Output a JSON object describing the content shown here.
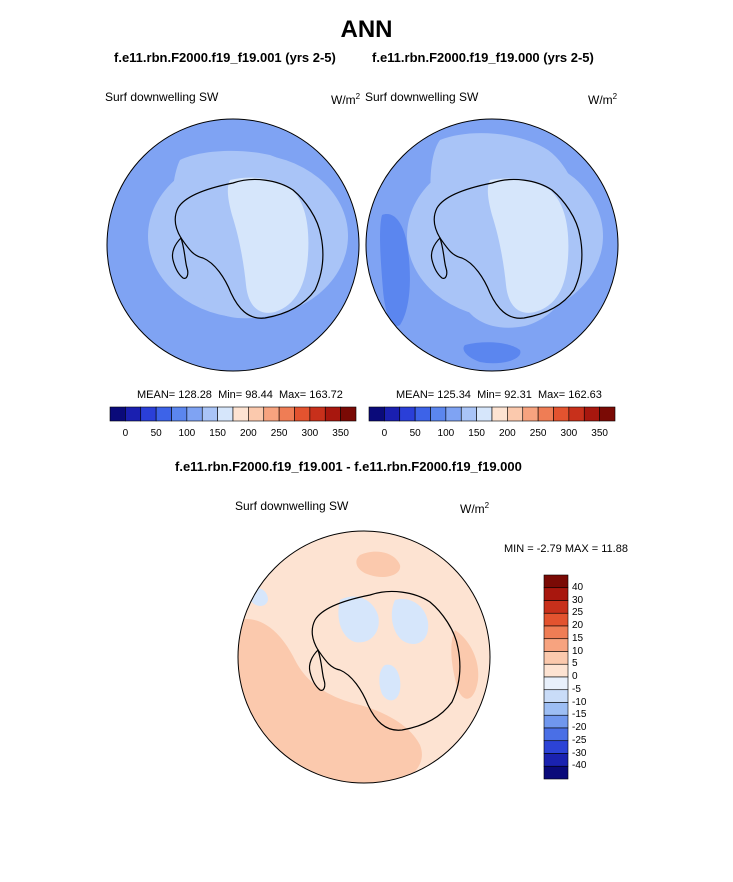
{
  "title": "ANN",
  "case_left": "f.e11.rbn.F2000.f19_f19.001 (yrs 2-5)",
  "case_right": "f.e11.rbn.F2000.f19_f19.000 (yrs 2-5)",
  "diff_title": "f.e11.rbn.F2000.f19_f19.001 - f.e11.rbn.F2000.f19_f19.000",
  "chart_data": [
    {
      "type": "heatmap",
      "projection": "south polar stereographic",
      "variable": "Surf downwelling SW",
      "units_base": "W/m",
      "units_exp": "2",
      "stats": {
        "mean_label": "MEAN=",
        "mean": "128.28",
        "min_label": "Min=",
        "min": "98.44",
        "max_label": "Max=",
        "max": "163.72"
      },
      "colorbar": {
        "orientation": "horizontal",
        "levels": [
          0,
          25,
          50,
          75,
          100,
          125,
          150,
          175,
          200,
          225,
          250,
          275,
          300,
          325,
          350
        ],
        "tick_labels": [
          "0",
          "50",
          "100",
          "150",
          "200",
          "250",
          "300",
          "350"
        ],
        "colors": [
          "#0a0a7a",
          "#1a1fb0",
          "#2a3fd8",
          "#3d63e8",
          "#5b86ef",
          "#7fa3f3",
          "#a9c4f7",
          "#d6e6fb",
          "#fde3d2",
          "#fbc9ad",
          "#f7a37f",
          "#ef7d55",
          "#e3532f",
          "#c8301b",
          "#a8170e",
          "#7a0a05"
        ]
      }
    },
    {
      "type": "heatmap",
      "projection": "south polar stereographic",
      "variable": "Surf downwelling SW",
      "units_base": "W/m",
      "units_exp": "2",
      "stats": {
        "mean_label": "MEAN=",
        "mean": "125.34",
        "min_label": "Min=",
        "min": "92.31",
        "max_label": "Max=",
        "max": "162.63"
      },
      "colorbar": {
        "orientation": "horizontal",
        "levels": [
          0,
          25,
          50,
          75,
          100,
          125,
          150,
          175,
          200,
          225,
          250,
          275,
          300,
          325,
          350
        ],
        "tick_labels": [
          "0",
          "50",
          "100",
          "150",
          "200",
          "250",
          "300",
          "350"
        ],
        "colors": [
          "#0a0a7a",
          "#1a1fb0",
          "#2a3fd8",
          "#3d63e8",
          "#5b86ef",
          "#7fa3f3",
          "#a9c4f7",
          "#d6e6fb",
          "#fde3d2",
          "#fbc9ad",
          "#f7a37f",
          "#ef7d55",
          "#e3532f",
          "#c8301b",
          "#a8170e",
          "#7a0a05"
        ]
      }
    },
    {
      "type": "heatmap",
      "projection": "south polar stereographic",
      "variable": "Surf downwelling SW",
      "units_base": "W/m",
      "units_exp": "2",
      "stats": {
        "min_label": "MIN =",
        "min": "-2.79",
        "max_label": "MAX =",
        "max": "11.88"
      },
      "colorbar": {
        "orientation": "vertical",
        "tick_labels": [
          "40",
          "30",
          "25",
          "20",
          "15",
          "10",
          "5",
          "0",
          "-5",
          "-10",
          "-15",
          "-20",
          "-25",
          "-30",
          "-40"
        ],
        "colors": [
          "#7a0a05",
          "#a8170e",
          "#c8301b",
          "#e3532f",
          "#ef7d55",
          "#f7a37f",
          "#fbc9ad",
          "#fde3d2",
          "#e8f0fb",
          "#c9dcf8",
          "#9dbef4",
          "#7097ee",
          "#4a6fe6",
          "#2c43d6",
          "#1a22b0",
          "#0a0a7a"
        ]
      }
    }
  ]
}
